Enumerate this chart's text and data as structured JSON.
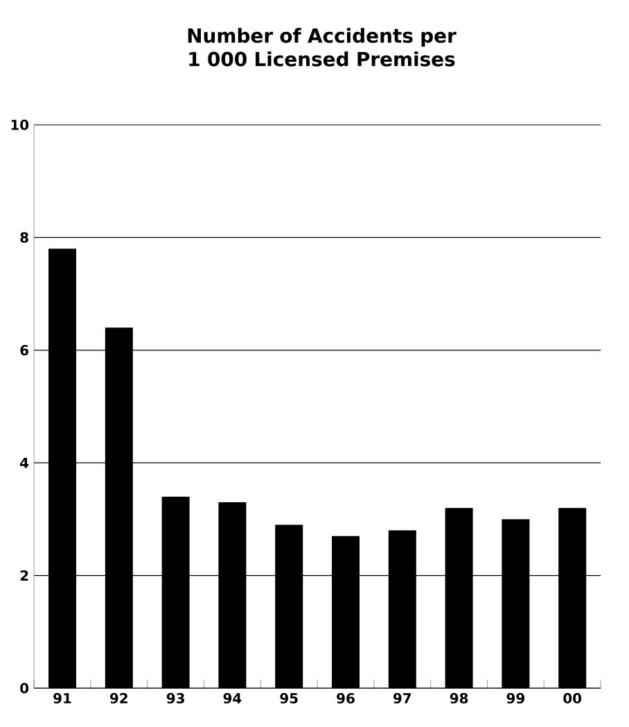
{
  "chart_data": {
    "type": "bar",
    "title": "Number of Accidents per 1 000 Licensed Premises",
    "categories": [
      "91",
      "92",
      "93",
      "94",
      "95",
      "96",
      "97",
      "98",
      "99",
      "00"
    ],
    "values": [
      7.8,
      6.4,
      3.4,
      3.3,
      2.9,
      2.7,
      2.8,
      3.2,
      3.0,
      3.2
    ],
    "color": "#000000",
    "ylim": [
      0,
      10
    ],
    "yticks": [
      0,
      2,
      4,
      6,
      8,
      10
    ],
    "grid": "y"
  }
}
